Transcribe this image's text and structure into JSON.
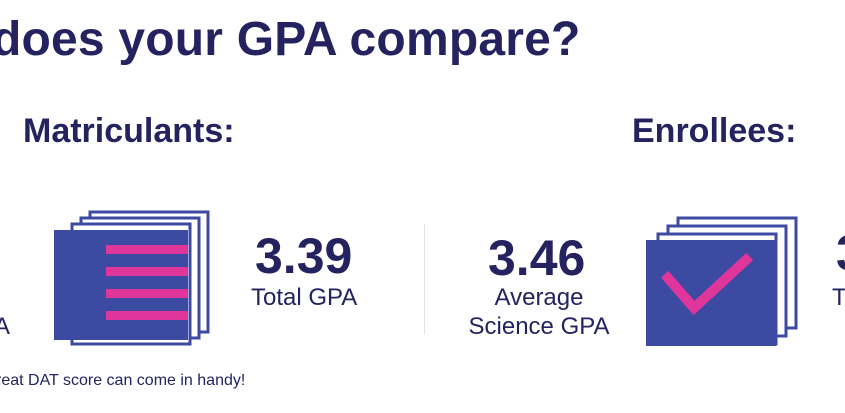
{
  "headline": "does your GPA compare?",
  "sections": {
    "matriculants": {
      "title": "Matriculants:",
      "clipped_label": "A",
      "total_gpa": {
        "value": "3.39",
        "label": "Total GPA"
      }
    },
    "enrollees": {
      "title": "Enrollees:",
      "science_gpa": {
        "value": "3.46",
        "label_line1": "Average",
        "label_line2": "Science GPA"
      },
      "clipped_value": "3",
      "clipped_label": "T"
    }
  },
  "footnote": "reat DAT score can come in handy!",
  "icons": {
    "matriculants": "document-stack-icon",
    "enrollees": "checkmark-stack-icon"
  },
  "colors": {
    "navy": "#24235f",
    "stack_blue": "#3d4aa2",
    "accent_pink": "#e0359b"
  }
}
